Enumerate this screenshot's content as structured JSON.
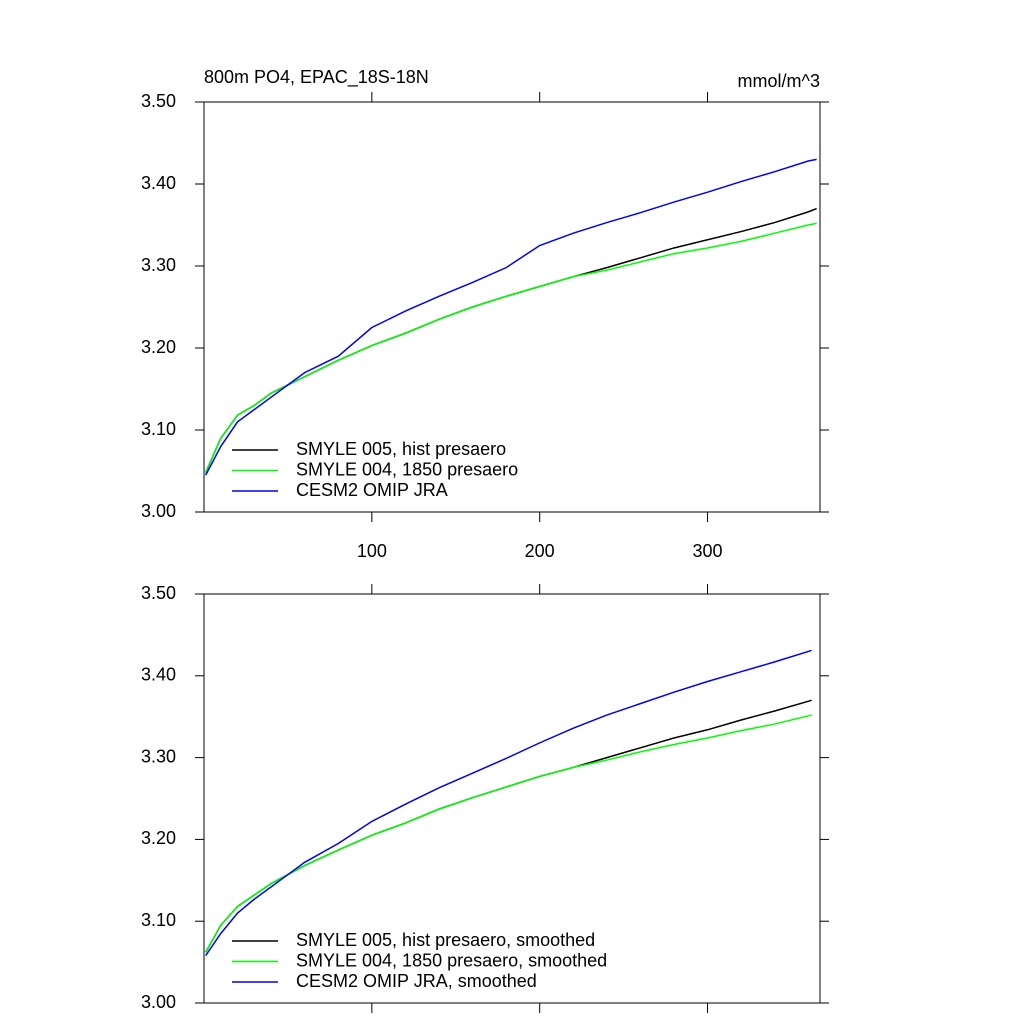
{
  "chart_data": [
    {
      "type": "line",
      "title": "800m PO4, EPAC_18S-18N",
      "units": "mmol/m^3",
      "x": [
        1,
        10,
        20,
        30,
        40,
        50,
        60,
        80,
        100,
        120,
        140,
        160,
        180,
        200,
        220,
        240,
        260,
        280,
        300,
        320,
        340,
        360,
        365
      ],
      "xlim": [
        0,
        367
      ],
      "xticks": [
        100,
        200,
        300
      ],
      "show_xtick_labels": true,
      "ylim": [
        3.0,
        3.5
      ],
      "yticks": [
        {
          "value": 3.0,
          "label": "3.00"
        },
        {
          "value": 3.1,
          "label": "3.10"
        },
        {
          "value": 3.2,
          "label": "3.20"
        },
        {
          "value": 3.3,
          "label": "3.30"
        },
        {
          "value": 3.4,
          "label": "3.40"
        },
        {
          "value": 3.5,
          "label": "3.50"
        }
      ],
      "legend": "lower left",
      "series": [
        {
          "name": "SMYLE 005, hist presaero",
          "color": "#000000",
          "values": [
            3.048,
            3.09,
            3.118,
            3.13,
            3.145,
            3.155,
            3.165,
            3.185,
            3.203,
            3.218,
            3.235,
            3.25,
            3.263,
            3.275,
            3.287,
            3.298,
            3.31,
            3.322,
            3.332,
            3.342,
            3.353,
            3.366,
            3.37
          ]
        },
        {
          "name": "SMYLE 004, 1850 presaero",
          "color": "#00ff00",
          "values": [
            3.048,
            3.09,
            3.118,
            3.13,
            3.145,
            3.155,
            3.165,
            3.185,
            3.203,
            3.218,
            3.235,
            3.25,
            3.263,
            3.275,
            3.287,
            3.295,
            3.305,
            3.315,
            3.322,
            3.33,
            3.34,
            3.35,
            3.352
          ]
        },
        {
          "name": "CESM2 OMIP JRA",
          "color": "#0000ff",
          "values": [
            3.045,
            3.08,
            3.11,
            3.125,
            3.14,
            3.155,
            3.17,
            3.19,
            3.225,
            3.245,
            3.263,
            3.28,
            3.298,
            3.325,
            3.34,
            3.353,
            3.365,
            3.378,
            3.39,
            3.403,
            3.415,
            3.428,
            3.43
          ]
        }
      ]
    },
    {
      "type": "line",
      "x": [
        1,
        10,
        20,
        30,
        40,
        50,
        60,
        80,
        100,
        120,
        140,
        160,
        180,
        200,
        220,
        240,
        260,
        280,
        300,
        320,
        340,
        362
      ],
      "xlim": [
        0,
        367
      ],
      "xticks": [
        100,
        200,
        300
      ],
      "show_xtick_labels": false,
      "ylim": [
        3.0,
        3.5
      ],
      "yticks": [
        {
          "value": 3.0,
          "label": "3.00"
        },
        {
          "value": 3.1,
          "label": "3.10"
        },
        {
          "value": 3.2,
          "label": "3.20"
        },
        {
          "value": 3.3,
          "label": "3.30"
        },
        {
          "value": 3.4,
          "label": "3.40"
        },
        {
          "value": 3.5,
          "label": "3.50"
        }
      ],
      "legend": "lower left",
      "series": [
        {
          "name": "SMYLE 005, hist presaero, smoothed",
          "color": "#000000",
          "values": [
            3.062,
            3.095,
            3.118,
            3.132,
            3.146,
            3.157,
            3.168,
            3.187,
            3.205,
            3.22,
            3.237,
            3.251,
            3.264,
            3.277,
            3.288,
            3.3,
            3.312,
            3.324,
            3.334,
            3.346,
            3.357,
            3.37
          ]
        },
        {
          "name": "SMYLE 004, 1850 presaero, smoothed",
          "color": "#00ff00",
          "values": [
            3.062,
            3.095,
            3.118,
            3.132,
            3.146,
            3.157,
            3.168,
            3.187,
            3.205,
            3.22,
            3.237,
            3.251,
            3.264,
            3.277,
            3.288,
            3.297,
            3.307,
            3.316,
            3.324,
            3.333,
            3.341,
            3.352
          ]
        },
        {
          "name": "CESM2 OMIP JRA, smoothed",
          "color": "#0000ff",
          "values": [
            3.058,
            3.085,
            3.11,
            3.127,
            3.142,
            3.157,
            3.172,
            3.195,
            3.222,
            3.243,
            3.263,
            3.281,
            3.299,
            3.318,
            3.336,
            3.352,
            3.366,
            3.38,
            3.393,
            3.405,
            3.417,
            3.431
          ]
        }
      ]
    }
  ]
}
